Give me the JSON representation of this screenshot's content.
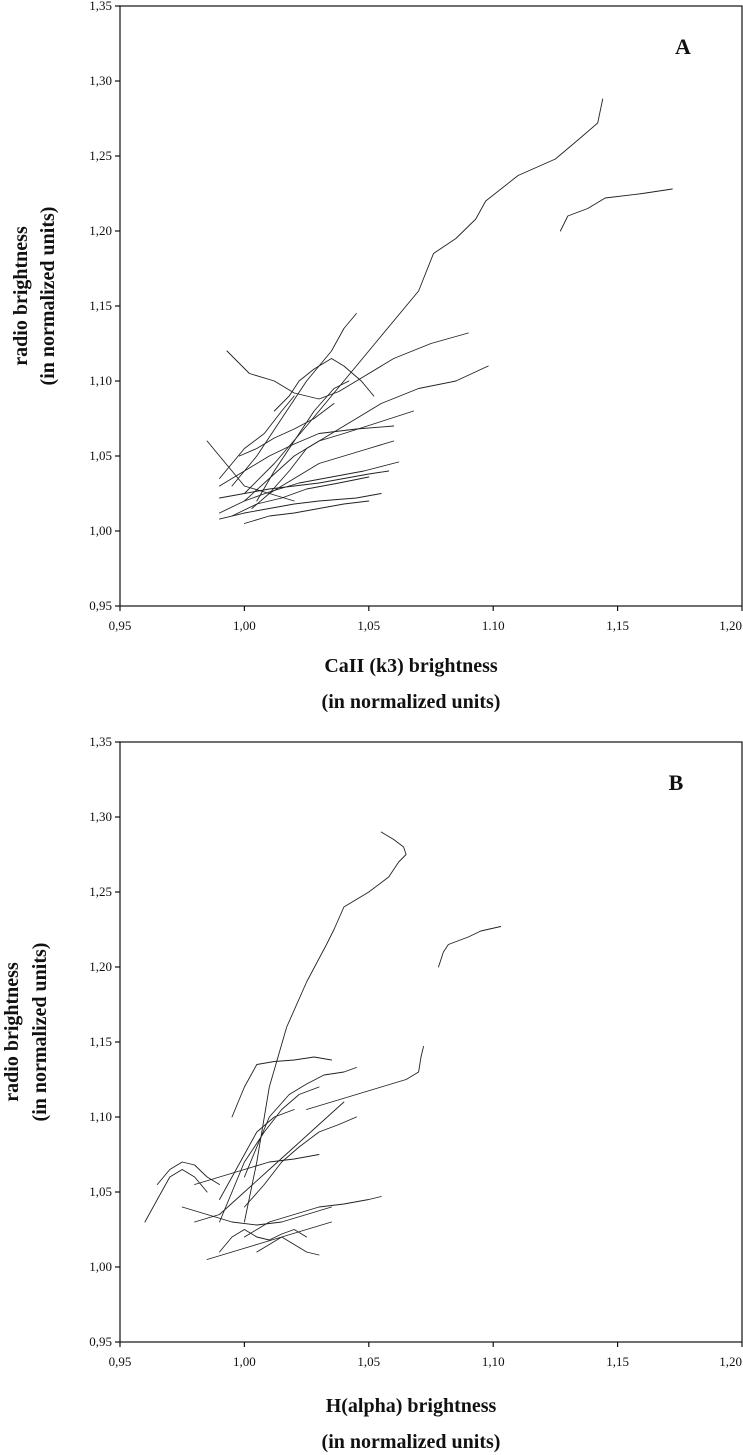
{
  "chart_data": [
    {
      "type": "line",
      "panel_label": "A",
      "xlabel_lines": [
        "CaII (k3) brightness",
        "(in normalized units)"
      ],
      "ylabel_lines": [
        "radio brightness",
        "(in normalized units)"
      ],
      "xlim": [
        0.95,
        1.2
      ],
      "ylim": [
        0.95,
        1.35
      ],
      "xticks": [
        0.95,
        1.0,
        1.05,
        1.1,
        1.15,
        1.2
      ],
      "xtick_labels": [
        "0,95",
        "1,00",
        "1,05",
        "1.10",
        "1,15",
        "1,20"
      ],
      "yticks": [
        0.95,
        1.0,
        1.05,
        1.1,
        1.15,
        1.2,
        1.25,
        1.3,
        1.35
      ],
      "ytick_labels": [
        "0,95",
        "1,00",
        "1,05",
        "1,10",
        "1,15",
        "1,20",
        "1,25",
        "1,30",
        "1,35"
      ],
      "grid": false,
      "series": [
        {
          "x": [
            1.0,
            1.012,
            1.025,
            1.04,
            1.055,
            1.07,
            1.076,
            1.085,
            1.093,
            1.097,
            1.11,
            1.125,
            1.135,
            1.142,
            1.143,
            1.144
          ],
          "y": [
            1.025,
            1.045,
            1.07,
            1.1,
            1.13,
            1.16,
            1.185,
            1.195,
            1.208,
            1.22,
            1.237,
            1.248,
            1.262,
            1.272,
            1.28,
            1.288
          ]
        },
        {
          "x": [
            1.127,
            1.13,
            1.138,
            1.145,
            1.16,
            1.172
          ],
          "y": [
            1.2,
            1.21,
            1.215,
            1.222,
            1.225,
            1.228
          ]
        },
        {
          "x": [
            0.993,
            1.002,
            1.012,
            1.02,
            1.03,
            1.038,
            1.045,
            1.06,
            1.075,
            1.09
          ],
          "y": [
            1.12,
            1.105,
            1.1,
            1.092,
            1.088,
            1.093,
            1.1,
            1.115,
            1.125,
            1.132
          ]
        },
        {
          "x": [
            1.003,
            1.01,
            1.018,
            1.025,
            1.035,
            1.045,
            1.055,
            1.07,
            1.085,
            1.098
          ],
          "y": [
            1.015,
            1.025,
            1.04,
            1.055,
            1.065,
            1.075,
            1.085,
            1.095,
            1.1,
            1.11
          ]
        },
        {
          "x": [
            0.995,
            1.005,
            1.015,
            1.025,
            1.035,
            1.04,
            1.045
          ],
          "y": [
            1.03,
            1.05,
            1.075,
            1.1,
            1.12,
            1.135,
            1.145
          ]
        },
        {
          "x": [
            1.0,
            1.01,
            1.02,
            1.03,
            1.04,
            1.055,
            1.068
          ],
          "y": [
            1.02,
            1.035,
            1.05,
            1.06,
            1.065,
            1.073,
            1.08
          ]
        },
        {
          "x": [
            0.99,
            1.0,
            1.01,
            1.02,
            1.03,
            1.045,
            1.06
          ],
          "y": [
            1.03,
            1.04,
            1.05,
            1.058,
            1.065,
            1.068,
            1.07
          ]
        },
        {
          "x": [
            0.99,
            1.0,
            1.01,
            1.022,
            1.035,
            1.048,
            1.062
          ],
          "y": [
            1.012,
            1.02,
            1.026,
            1.032,
            1.036,
            1.04,
            1.046
          ]
        },
        {
          "x": [
            0.995,
            1.005,
            1.015,
            1.025,
            1.038,
            1.05
          ],
          "y": [
            1.01,
            1.018,
            1.022,
            1.028,
            1.032,
            1.036
          ]
        },
        {
          "x": [
            0.985,
            0.99,
            0.995,
            1.0,
            1.01,
            1.02
          ],
          "y": [
            1.06,
            1.05,
            1.04,
            1.03,
            1.025,
            1.02
          ]
        },
        {
          "x": [
            1.005,
            1.012,
            1.02,
            1.028,
            1.036,
            1.042
          ],
          "y": [
            1.02,
            1.04,
            1.06,
            1.08,
            1.095,
            1.1
          ]
        },
        {
          "x": [
            1.012,
            1.018,
            1.022,
            1.028,
            1.035,
            1.04,
            1.047,
            1.052
          ],
          "y": [
            1.08,
            1.09,
            1.1,
            1.108,
            1.115,
            1.11,
            1.1,
            1.09
          ]
        },
        {
          "x": [
            0.99,
            1.0,
            1.01,
            1.02,
            1.03,
            1.04,
            1.05,
            1.058
          ],
          "y": [
            1.022,
            1.025,
            1.028,
            1.03,
            1.032,
            1.035,
            1.038,
            1.04
          ]
        },
        {
          "x": [
            0.998,
            1.005,
            1.012,
            1.02,
            1.028,
            1.036
          ],
          "y": [
            1.05,
            1.055,
            1.062,
            1.068,
            1.075,
            1.085
          ]
        },
        {
          "x": [
            0.99,
            0.995,
            1.0,
            1.008,
            1.015,
            1.02
          ],
          "y": [
            1.035,
            1.045,
            1.055,
            1.065,
            1.08,
            1.09
          ]
        },
        {
          "x": [
            0.99,
            1.0,
            1.01,
            1.02,
            1.03,
            1.045,
            1.055
          ],
          "y": [
            1.008,
            1.012,
            1.015,
            1.018,
            1.02,
            1.022,
            1.025
          ]
        },
        {
          "x": [
            1.0,
            1.01,
            1.02,
            1.03,
            1.04,
            1.05
          ],
          "y": [
            1.005,
            1.01,
            1.012,
            1.015,
            1.018,
            1.02
          ]
        },
        {
          "x": [
            1.01,
            1.02,
            1.03,
            1.04,
            1.05,
            1.06
          ],
          "y": [
            1.025,
            1.035,
            1.045,
            1.05,
            1.055,
            1.06
          ]
        }
      ]
    },
    {
      "type": "line",
      "panel_label": "B",
      "xlabel_lines": [
        "H(alpha) brightness",
        "(in normalized units)"
      ],
      "ylabel_lines": [
        "radio brightness",
        "(in normalized units)"
      ],
      "xlim": [
        0.95,
        1.2
      ],
      "ylim": [
        0.95,
        1.35
      ],
      "xticks": [
        0.95,
        1.0,
        1.05,
        1.1,
        1.15,
        1.2
      ],
      "xtick_labels": [
        "0,95",
        "1,00",
        "1,05",
        "1,10",
        "1,15",
        "1,20"
      ],
      "yticks": [
        0.95,
        1.0,
        1.05,
        1.1,
        1.15,
        1.2,
        1.25,
        1.3,
        1.35
      ],
      "ytick_labels": [
        "0,95",
        "1,00",
        "1,05",
        "1,10",
        "1,15",
        "1,20",
        "1,25",
        "1,30",
        "1,35"
      ],
      "grid": false,
      "series": [
        {
          "x": [
            1.0,
            1.005,
            1.01,
            1.017,
            1.025,
            1.033,
            1.036,
            1.04,
            1.05,
            1.058,
            1.062,
            1.065,
            1.064,
            1.06,
            1.055
          ],
          "y": [
            1.03,
            1.07,
            1.12,
            1.16,
            1.19,
            1.215,
            1.225,
            1.24,
            1.25,
            1.26,
            1.27,
            1.275,
            1.28,
            1.285,
            1.29
          ]
        },
        {
          "x": [
            1.078,
            1.08,
            1.082,
            1.09,
            1.095,
            1.103
          ],
          "y": [
            1.2,
            1.21,
            1.215,
            1.22,
            1.224,
            1.227
          ]
        },
        {
          "x": [
            1.025,
            1.035,
            1.045,
            1.055,
            1.065,
            1.07,
            1.071,
            1.072
          ],
          "y": [
            1.105,
            1.11,
            1.115,
            1.12,
            1.125,
            1.13,
            1.14,
            1.147
          ]
        },
        {
          "x": [
            0.995,
            1.0,
            1.005,
            1.012,
            1.02,
            1.028,
            1.035
          ],
          "y": [
            1.1,
            1.12,
            1.135,
            1.137,
            1.138,
            1.14,
            1.138
          ]
        },
        {
          "x": [
            1.0,
            1.005,
            1.01,
            1.018,
            1.025,
            1.032,
            1.04,
            1.045
          ],
          "y": [
            1.06,
            1.08,
            1.1,
            1.115,
            1.122,
            1.128,
            1.13,
            1.133
          ]
        },
        {
          "x": [
            0.99,
            0.995,
            1.0,
            1.008,
            1.015,
            1.022,
            1.03
          ],
          "y": [
            1.03,
            1.05,
            1.07,
            1.09,
            1.105,
            1.115,
            1.12
          ]
        },
        {
          "x": [
            0.98,
            0.99,
            1.0,
            1.01,
            1.02,
            1.03,
            1.04
          ],
          "y": [
            1.03,
            1.035,
            1.05,
            1.065,
            1.08,
            1.095,
            1.11
          ]
        },
        {
          "x": [
            0.96,
            0.965,
            0.97,
            0.975,
            0.98,
            0.985
          ],
          "y": [
            1.03,
            1.045,
            1.06,
            1.065,
            1.06,
            1.05
          ]
        },
        {
          "x": [
            0.965,
            0.97,
            0.975,
            0.98,
            0.985,
            0.99
          ],
          "y": [
            1.055,
            1.065,
            1.07,
            1.068,
            1.06,
            1.055
          ]
        },
        {
          "x": [
            0.99,
            0.995,
            1.0,
            1.005,
            1.01,
            1.015,
            1.02,
            1.025
          ],
          "y": [
            1.01,
            1.02,
            1.025,
            1.02,
            1.018,
            1.022,
            1.025,
            1.02
          ]
        },
        {
          "x": [
            1.0,
            1.01,
            1.02,
            1.03,
            1.04,
            1.05,
            1.055
          ],
          "y": [
            1.02,
            1.03,
            1.035,
            1.04,
            1.042,
            1.045,
            1.047
          ]
        },
        {
          "x": [
            0.985,
            0.995,
            1.005,
            1.015,
            1.025,
            1.035
          ],
          "y": [
            1.005,
            1.01,
            1.015,
            1.02,
            1.025,
            1.03
          ]
        },
        {
          "x": [
            1.0,
            1.008,
            1.015,
            1.022,
            1.03,
            1.038,
            1.045
          ],
          "y": [
            1.04,
            1.055,
            1.07,
            1.08,
            1.09,
            1.095,
            1.1
          ]
        },
        {
          "x": [
            0.975,
            0.985,
            0.995,
            1.005,
            1.015,
            1.025,
            1.035
          ],
          "y": [
            1.04,
            1.035,
            1.03,
            1.028,
            1.03,
            1.035,
            1.04
          ]
        },
        {
          "x": [
            0.99,
            0.995,
            1.0,
            1.005,
            1.012,
            1.02
          ],
          "y": [
            1.045,
            1.06,
            1.075,
            1.09,
            1.1,
            1.105
          ]
        },
        {
          "x": [
            1.005,
            1.01,
            1.015,
            1.02,
            1.025,
            1.03
          ],
          "y": [
            1.01,
            1.015,
            1.02,
            1.015,
            1.01,
            1.008
          ]
        },
        {
          "x": [
            0.98,
            0.99,
            1.0,
            1.01,
            1.02,
            1.03
          ],
          "y": [
            1.055,
            1.06,
            1.065,
            1.07,
            1.072,
            1.075
          ]
        }
      ]
    }
  ]
}
